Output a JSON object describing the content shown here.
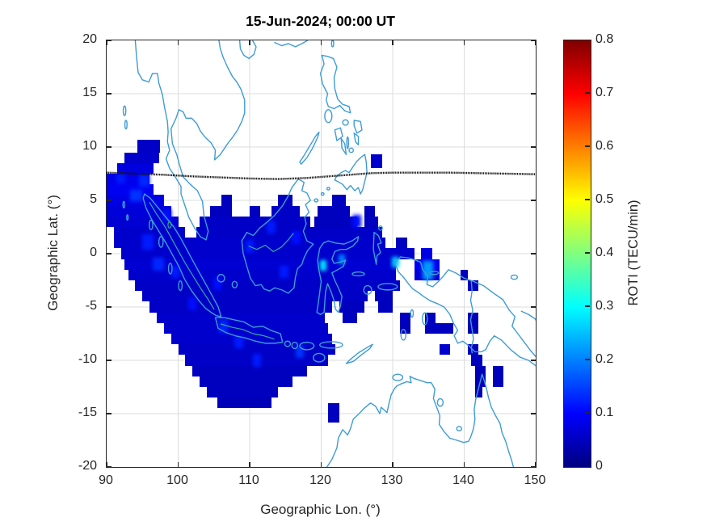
{
  "chart_data": {
    "type": "heatmap",
    "title": "15-Jun-2024; 00:00 UT",
    "xlabel": "Geographic Lon. (°)",
    "ylabel": "Geographic Lat. (°)",
    "xlim": [
      90,
      150
    ],
    "ylim": [
      -20,
      20
    ],
    "xticks": [
      90,
      100,
      110,
      120,
      130,
      140,
      150
    ],
    "yticks": [
      -20,
      -15,
      -10,
      -5,
      0,
      5,
      10,
      15,
      20
    ],
    "grid": true,
    "basemap": "Southeast Asia / Maritime Continent coastlines",
    "colorbar": {
      "label": "ROTI (TECU/min)",
      "min": 0,
      "max": 0.8,
      "ticks": [
        0,
        0.1,
        0.2,
        0.3,
        0.4,
        0.5,
        0.6,
        0.7,
        0.8
      ],
      "colormap": "jet"
    },
    "colors": {
      "coastline": "#3e9cd6",
      "inland_contour": "#35ab9c",
      "dashed_line": "#111111",
      "grid": "#dcdcdc",
      "background": "#ffffff"
    },
    "cell_format": "[lon_west, lat_south, lon_east, lat_north, roti_value_tecu_per_min]",
    "cells": [
      [
        94.3,
        9.5,
        97.5,
        10.7,
        0.055
      ],
      [
        92.5,
        8.5,
        97.3,
        9.5,
        0.06
      ],
      [
        91.5,
        7.5,
        96.5,
        8.5,
        0.075
      ],
      [
        90,
        6.5,
        96,
        7.5,
        0.085
      ],
      [
        90,
        5.5,
        96.5,
        6.5,
        0.09
      ],
      [
        90,
        4.5,
        98,
        5.5,
        0.08
      ],
      [
        90,
        3.5,
        99,
        4.5,
        0.07
      ],
      [
        90,
        2.5,
        100,
        3.5,
        0.065
      ],
      [
        91,
        1.5,
        101,
        2.5,
        0.06
      ],
      [
        102.5,
        1.5,
        128.5,
        2.5,
        0.055
      ],
      [
        103,
        2.5,
        118.5,
        3.5,
        0.055
      ],
      [
        119,
        2.5,
        125,
        3.5,
        0.05
      ],
      [
        126,
        2.5,
        128,
        3.5,
        0.05
      ],
      [
        104.5,
        3.5,
        107.5,
        4.5,
        0.05
      ],
      [
        110,
        3.5,
        111.5,
        4.5,
        0.05
      ],
      [
        113,
        3.5,
        117,
        4.5,
        0.055
      ],
      [
        119.5,
        3.5,
        124,
        4.5,
        0.05
      ],
      [
        126,
        3.5,
        127.5,
        4.5,
        0.045
      ],
      [
        106,
        4.5,
        107.5,
        5.5,
        0.05
      ],
      [
        114,
        4.5,
        116,
        5.5,
        0.05
      ],
      [
        121.5,
        4.5,
        123.5,
        5.5,
        0.05
      ],
      [
        91,
        0.5,
        129,
        1.5,
        0.06
      ],
      [
        130.5,
        0.5,
        132,
        1.5,
        0.05
      ],
      [
        92,
        -0.5,
        133,
        0.5,
        0.06
      ],
      [
        134,
        -0.5,
        135.5,
        0.5,
        0.08
      ],
      [
        92.5,
        -1.5,
        130.5,
        -0.5,
        0.065
      ],
      [
        133,
        -1.5,
        136.5,
        -0.5,
        0.09
      ],
      [
        93,
        -2.5,
        130.5,
        -1.5,
        0.06
      ],
      [
        133,
        -2.5,
        136.5,
        -1.5,
        0.07
      ],
      [
        139.5,
        -2.5,
        140.5,
        -1.5,
        0.05
      ],
      [
        94,
        -3.5,
        131,
        -2.5,
        0.055
      ],
      [
        140.5,
        -3.5,
        142,
        -2.5,
        0.05
      ],
      [
        95,
        -4.5,
        126.5,
        -3.5,
        0.055
      ],
      [
        127.5,
        -4.5,
        130,
        -3.5,
        0.05
      ],
      [
        96,
        -5.5,
        121.5,
        -4.5,
        0.055
      ],
      [
        122.5,
        -5.5,
        126,
        -4.5,
        0.05
      ],
      [
        128,
        -5.5,
        130,
        -4.5,
        0.05
      ],
      [
        97,
        -6.5,
        120.5,
        -5.5,
        0.06
      ],
      [
        123,
        -6.5,
        125,
        -5.5,
        0.05
      ],
      [
        131,
        -6.5,
        132.5,
        -5.5,
        0.05
      ],
      [
        134.5,
        -6.5,
        136,
        -5.5,
        0.05
      ],
      [
        140.5,
        -6.5,
        142,
        -5.5,
        0.045
      ],
      [
        98,
        -7.5,
        121,
        -6.5,
        0.06
      ],
      [
        131,
        -7.5,
        132.5,
        -6.5,
        0.045
      ],
      [
        134.5,
        -7.5,
        138.5,
        -6.5,
        0.05
      ],
      [
        140.5,
        -7.5,
        142,
        -6.5,
        0.045
      ],
      [
        99,
        -8.5,
        121.5,
        -7.5,
        0.06
      ],
      [
        100,
        -9.5,
        122,
        -8.5,
        0.055
      ],
      [
        136.5,
        -9.5,
        138,
        -8.5,
        0.06
      ],
      [
        140.5,
        -9.5,
        142,
        -8.5,
        0.05
      ],
      [
        101,
        -10.5,
        121,
        -9.5,
        0.055
      ],
      [
        141,
        -10.5,
        142.5,
        -9.5,
        0.05
      ],
      [
        102,
        -11.5,
        118,
        -10.5,
        0.05
      ],
      [
        141.5,
        -11.5,
        143,
        -10.5,
        0.045
      ],
      [
        144,
        -11.5,
        145.5,
        -10.5,
        0.045
      ],
      [
        103,
        -12.5,
        116,
        -11.5,
        0.05
      ],
      [
        141.5,
        -12.5,
        143,
        -11.5,
        0.045
      ],
      [
        144,
        -12.5,
        145.5,
        -11.5,
        0.045
      ],
      [
        104,
        -13.5,
        114,
        -12.5,
        0.05
      ],
      [
        141.5,
        -13.5,
        142.5,
        -12.5,
        0.045
      ],
      [
        105.5,
        -14.5,
        113,
        -13.5,
        0.045
      ],
      [
        121,
        -15.8,
        122.5,
        -14,
        0.05
      ],
      [
        127,
        8,
        128.5,
        9.3,
        0.06
      ]
    ],
    "bright_cells": [
      [
        94.5,
        6.3,
        96,
        7.4,
        0.13
      ],
      [
        93.3,
        4.9,
        95,
        6,
        0.14
      ],
      [
        91.4,
        6.6,
        92.6,
        7.5,
        0.12
      ],
      [
        95,
        0.4,
        96.6,
        1.8,
        0.12
      ],
      [
        96.4,
        -1.6,
        98,
        -0.4,
        0.13
      ],
      [
        99,
        -2.3,
        100.2,
        -1.1,
        0.12
      ],
      [
        97.8,
        3,
        99,
        4.2,
        0.11
      ],
      [
        101.4,
        -5.3,
        102.6,
        -4.1,
        0.11
      ],
      [
        104.9,
        -3.4,
        106.1,
        -2.2,
        0.11
      ],
      [
        105.7,
        -7.4,
        107,
        -6.2,
        0.13
      ],
      [
        107.9,
        -8.9,
        109.1,
        -7.7,
        0.12
      ],
      [
        110.4,
        -10.6,
        111.6,
        -9.4,
        0.12
      ],
      [
        116.4,
        -9.8,
        117.6,
        -8.6,
        0.14
      ],
      [
        112.4,
        1.9,
        113.6,
        3.1,
        0.12
      ],
      [
        115.9,
        0.9,
        117.1,
        2.1,
        0.11
      ],
      [
        109.4,
        0.1,
        110.6,
        1.3,
        0.12
      ],
      [
        124.4,
        2.4,
        125.6,
        3.6,
        0.11
      ],
      [
        114.2,
        -2.3,
        115.4,
        -1.1,
        0.12
      ],
      [
        119.8,
        -1.6,
        120.7,
        -0.6,
        0.28
      ],
      [
        122.4,
        -1,
        123.3,
        -0.1,
        0.2
      ],
      [
        129.9,
        -1.3,
        130.9,
        -0.3,
        0.26
      ],
      [
        134.2,
        -2.4,
        135.7,
        -0.7,
        0.22
      ]
    ],
    "dashed_line_lon_lat": [
      [
        90,
        7.6
      ],
      [
        94,
        7.5
      ],
      [
        98,
        7.4
      ],
      [
        102,
        7.25
      ],
      [
        106,
        7.15
      ],
      [
        110,
        7.05
      ],
      [
        114,
        7.0
      ],
      [
        118,
        7.1
      ],
      [
        121,
        7.25
      ],
      [
        124,
        7.4
      ],
      [
        127,
        7.55
      ],
      [
        130,
        7.6
      ],
      [
        134,
        7.6
      ],
      [
        138,
        7.6
      ],
      [
        142,
        7.55
      ],
      [
        146,
        7.5
      ],
      [
        150,
        7.45
      ]
    ]
  }
}
